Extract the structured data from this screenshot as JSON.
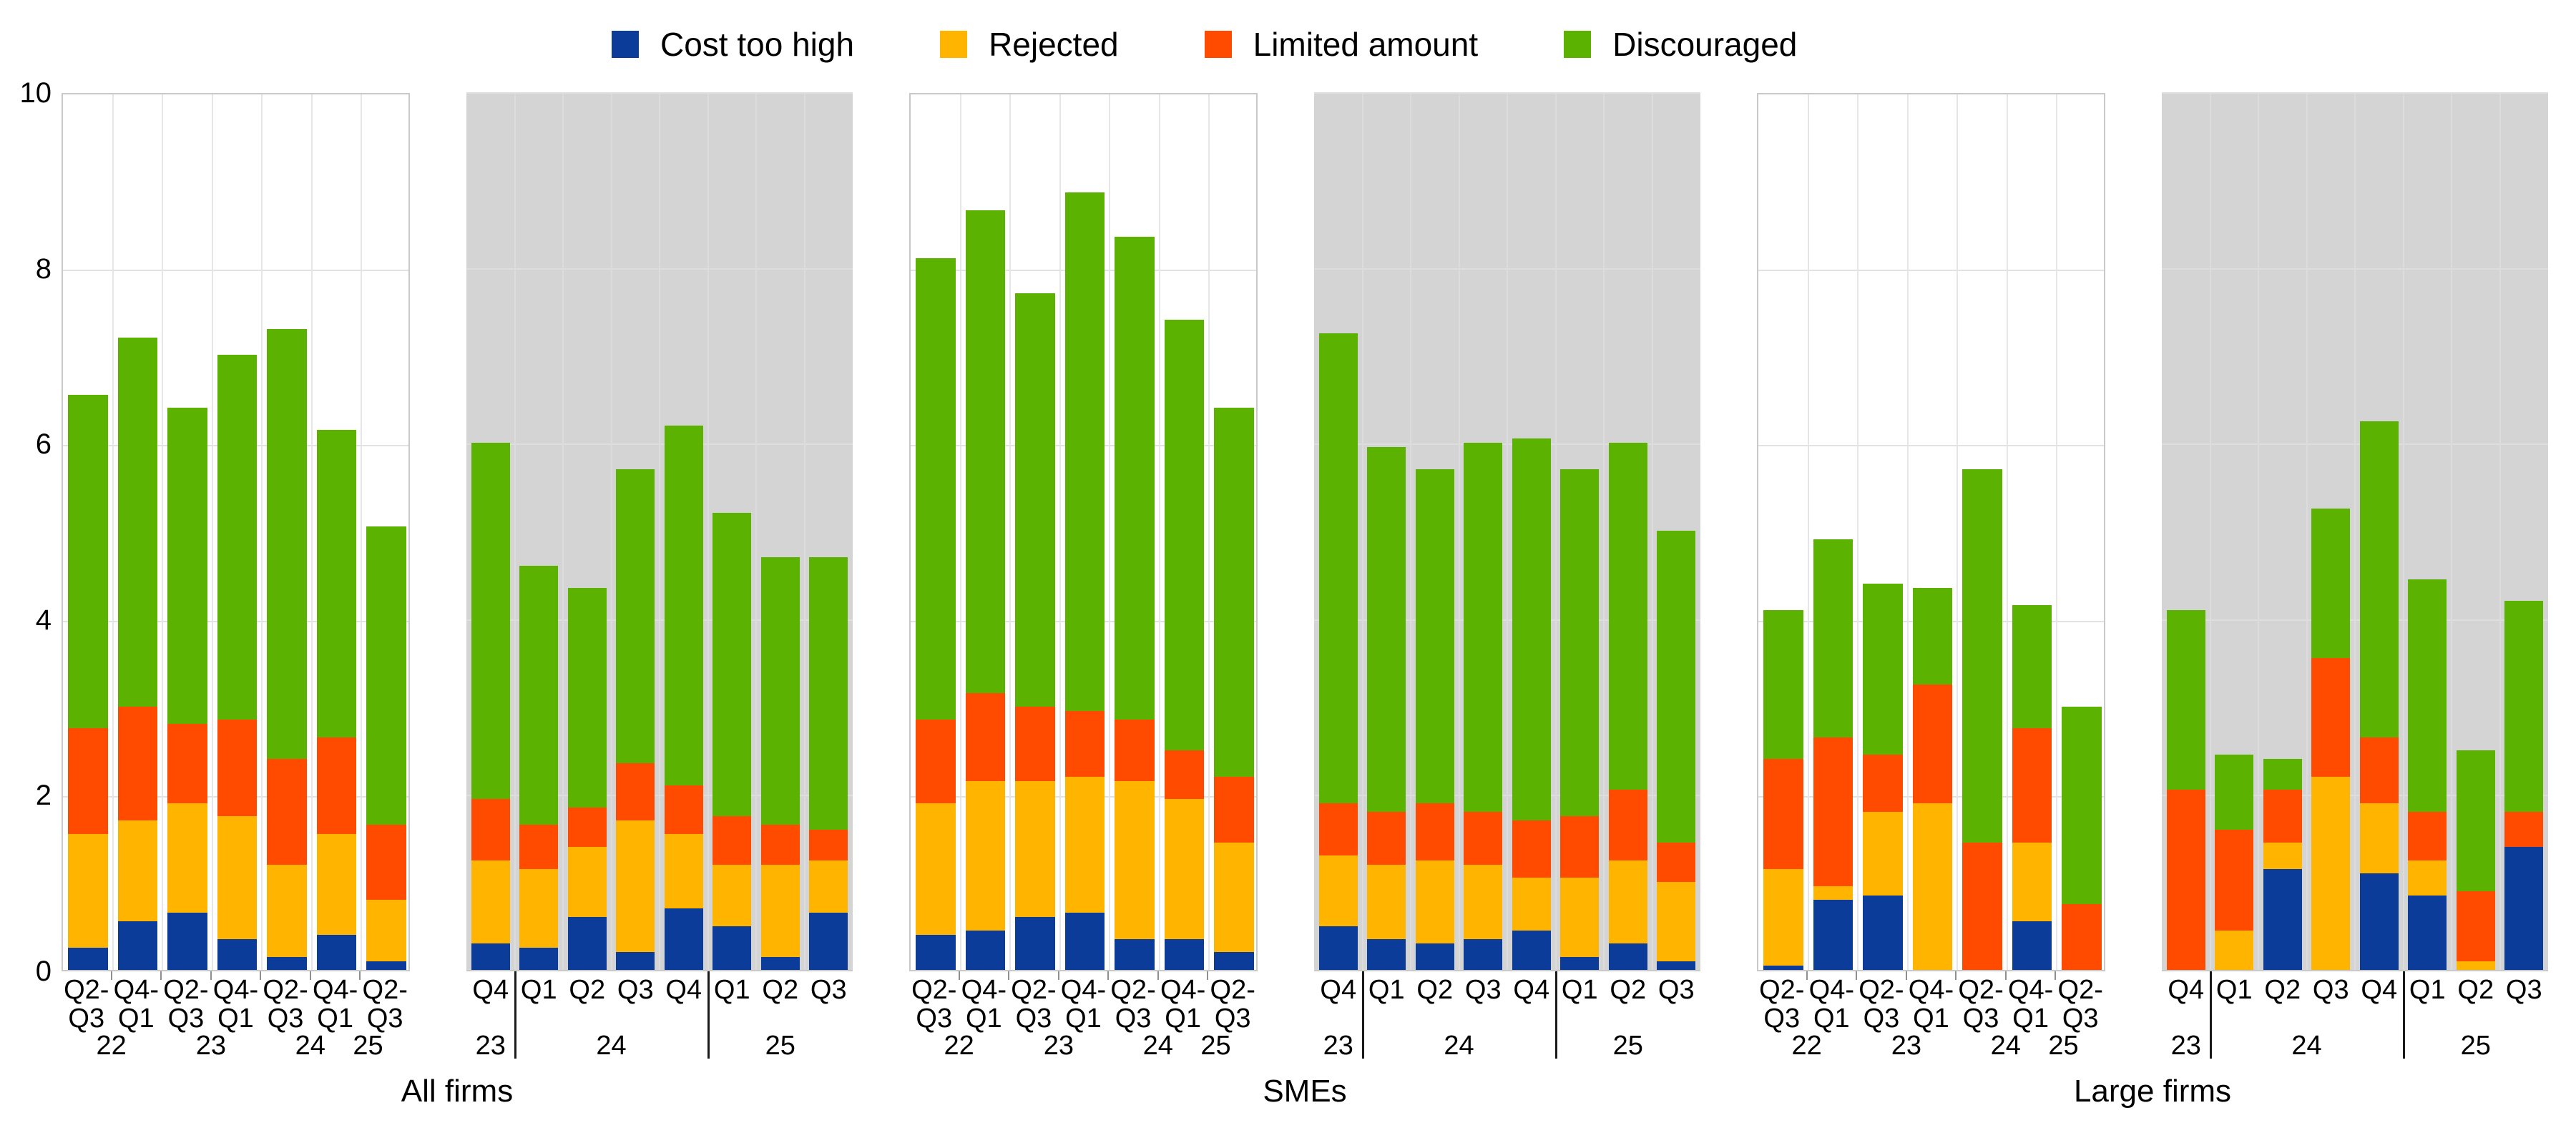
{
  "chart_data": {
    "type": "bar",
    "stacked": true,
    "title": "",
    "xlabel": "",
    "ylabel": "",
    "ylim": [
      0,
      10
    ],
    "yticks": [
      0,
      2,
      4,
      6,
      8,
      10
    ],
    "grid": true,
    "legend_position": "top",
    "series": [
      {
        "name": "Cost too high",
        "color": "#0C3C99"
      },
      {
        "name": "Rejected",
        "color": "#FFB400"
      },
      {
        "name": "Limited amount",
        "color": "#FF4B00"
      },
      {
        "name": "Discouraged",
        "color": "#5CB200"
      }
    ],
    "panels": [
      {
        "title": "All firms",
        "sections": [
          {
            "kind": "semiannual",
            "background": "white",
            "bars": [
              {
                "label": "Q2-Q3",
                "label_lines": [
                  "Q2-",
                  "Q3"
                ],
                "values": [
                  0.25,
                  1.3,
                  1.2,
                  3.8
                ]
              },
              {
                "label": "Q4-Q1",
                "label_lines": [
                  "Q4-",
                  "Q1"
                ],
                "values": [
                  0.55,
                  1.15,
                  1.3,
                  4.2
                ]
              },
              {
                "label": "Q2-Q3",
                "label_lines": [
                  "Q2-",
                  "Q3"
                ],
                "values": [
                  0.65,
                  1.25,
                  0.9,
                  3.6
                ]
              },
              {
                "label": "Q4-Q1",
                "label_lines": [
                  "Q4-",
                  "Q1"
                ],
                "values": [
                  0.35,
                  1.4,
                  1.1,
                  4.15
                ]
              },
              {
                "label": "Q2-Q3",
                "label_lines": [
                  "Q2-",
                  "Q3"
                ],
                "values": [
                  0.15,
                  1.05,
                  1.2,
                  4.9
                ]
              },
              {
                "label": "Q4-Q1",
                "label_lines": [
                  "Q4-",
                  "Q1"
                ],
                "values": [
                  0.4,
                  1.15,
                  1.1,
                  3.5
                ]
              },
              {
                "label": "Q2-Q3",
                "label_lines": [
                  "Q2-",
                  "Q3"
                ],
                "values": [
                  0.1,
                  0.7,
                  0.85,
                  3.4
                ]
              }
            ],
            "years": [
              {
                "label": "22",
                "pos": 0.143
              },
              {
                "label": "23",
                "pos": 0.429
              },
              {
                "label": "24",
                "pos": 0.714
              },
              {
                "label": "25",
                "pos": 0.88
              }
            ],
            "separators": []
          },
          {
            "kind": "quarterly",
            "background": "gray",
            "bars": [
              {
                "label": "Q4",
                "values": [
                  0.3,
                  0.95,
                  0.7,
                  4.05
                ]
              },
              {
                "label": "Q1",
                "values": [
                  0.25,
                  0.9,
                  0.5,
                  2.95
                ]
              },
              {
                "label": "Q2",
                "values": [
                  0.6,
                  0.8,
                  0.45,
                  2.5
                ]
              },
              {
                "label": "Q3",
                "values": [
                  0.2,
                  1.5,
                  0.65,
                  3.35
                ]
              },
              {
                "label": "Q4",
                "values": [
                  0.7,
                  0.85,
                  0.55,
                  4.1
                ]
              },
              {
                "label": "Q1",
                "values": [
                  0.5,
                  0.7,
                  0.55,
                  3.45
                ]
              },
              {
                "label": "Q2",
                "values": [
                  0.15,
                  1.05,
                  0.45,
                  3.05
                ]
              },
              {
                "label": "Q3",
                "values": [
                  0.65,
                  0.6,
                  0.35,
                  3.1
                ]
              }
            ],
            "years": [
              {
                "label": "23",
                "pos": 0.0625
              },
              {
                "label": "24",
                "pos": 0.375
              },
              {
                "label": "25",
                "pos": 0.8125
              }
            ],
            "separators": [
              0.125,
              0.625
            ]
          }
        ]
      },
      {
        "title": "SMEs",
        "sections": [
          {
            "kind": "semiannual",
            "background": "white",
            "bars": [
              {
                "label": "Q2-Q3",
                "label_lines": [
                  "Q2-",
                  "Q3"
                ],
                "values": [
                  0.4,
                  1.5,
                  0.95,
                  5.25
                ]
              },
              {
                "label": "Q4-Q1",
                "label_lines": [
                  "Q4-",
                  "Q1"
                ],
                "values": [
                  0.45,
                  1.7,
                  1.0,
                  5.5
                ]
              },
              {
                "label": "Q2-Q3",
                "label_lines": [
                  "Q2-",
                  "Q3"
                ],
                "values": [
                  0.6,
                  1.55,
                  0.85,
                  4.7
                ]
              },
              {
                "label": "Q4-Q1",
                "label_lines": [
                  "Q4-",
                  "Q1"
                ],
                "values": [
                  0.65,
                  1.55,
                  0.75,
                  5.9
                ]
              },
              {
                "label": "Q2-Q3",
                "label_lines": [
                  "Q2-",
                  "Q3"
                ],
                "values": [
                  0.35,
                  1.8,
                  0.7,
                  5.5
                ]
              },
              {
                "label": "Q4-Q1",
                "label_lines": [
                  "Q4-",
                  "Q1"
                ],
                "values": [
                  0.35,
                  1.6,
                  0.55,
                  4.9
                ]
              },
              {
                "label": "Q2-Q3",
                "label_lines": [
                  "Q2-",
                  "Q3"
                ],
                "values": [
                  0.2,
                  1.25,
                  0.75,
                  4.2
                ]
              }
            ],
            "years": [
              {
                "label": "22",
                "pos": 0.143
              },
              {
                "label": "23",
                "pos": 0.429
              },
              {
                "label": "24",
                "pos": 0.714
              },
              {
                "label": "25",
                "pos": 0.88
              }
            ],
            "separators": []
          },
          {
            "kind": "quarterly",
            "background": "gray",
            "bars": [
              {
                "label": "Q4",
                "values": [
                  0.5,
                  0.8,
                  0.6,
                  5.35
                ]
              },
              {
                "label": "Q1",
                "values": [
                  0.35,
                  0.85,
                  0.6,
                  4.15
                ]
              },
              {
                "label": "Q2",
                "values": [
                  0.3,
                  0.95,
                  0.65,
                  3.8
                ]
              },
              {
                "label": "Q3",
                "values": [
                  0.35,
                  0.85,
                  0.6,
                  4.2
                ]
              },
              {
                "label": "Q4",
                "values": [
                  0.45,
                  0.6,
                  0.65,
                  4.35
                ]
              },
              {
                "label": "Q1",
                "values": [
                  0.15,
                  0.9,
                  0.7,
                  3.95
                ]
              },
              {
                "label": "Q2",
                "values": [
                  0.3,
                  0.95,
                  0.8,
                  3.95
                ]
              },
              {
                "label": "Q3",
                "values": [
                  0.1,
                  0.9,
                  0.45,
                  3.55
                ]
              }
            ],
            "years": [
              {
                "label": "23",
                "pos": 0.0625
              },
              {
                "label": "24",
                "pos": 0.375
              },
              {
                "label": "25",
                "pos": 0.8125
              }
            ],
            "separators": [
              0.125,
              0.625
            ]
          }
        ]
      },
      {
        "title": "Large firms",
        "sections": [
          {
            "kind": "semiannual",
            "background": "white",
            "bars": [
              {
                "label": "Q2-Q3",
                "label_lines": [
                  "Q2-",
                  "Q3"
                ],
                "values": [
                  0.05,
                  1.1,
                  1.25,
                  1.7
                ]
              },
              {
                "label": "Q4-Q1",
                "label_lines": [
                  "Q4-",
                  "Q1"
                ],
                "values": [
                  0.8,
                  0.15,
                  1.7,
                  2.25
                ]
              },
              {
                "label": "Q2-Q3",
                "label_lines": [
                  "Q2-",
                  "Q3"
                ],
                "values": [
                  0.85,
                  0.95,
                  0.65,
                  1.95
                ]
              },
              {
                "label": "Q4-Q1",
                "label_lines": [
                  "Q4-",
                  "Q1"
                ],
                "values": [
                  0.0,
                  1.9,
                  1.35,
                  1.1
                ]
              },
              {
                "label": "Q2-Q3",
                "label_lines": [
                  "Q2-",
                  "Q3"
                ],
                "values": [
                  0.0,
                  0.0,
                  1.45,
                  4.25
                ]
              },
              {
                "label": "Q4-Q1",
                "label_lines": [
                  "Q4-",
                  "Q1"
                ],
                "values": [
                  0.55,
                  0.9,
                  1.3,
                  1.4
                ]
              },
              {
                "label": "Q2-Q3",
                "label_lines": [
                  "Q2-",
                  "Q3"
                ],
                "values": [
                  0.0,
                  0.0,
                  0.75,
                  2.25
                ]
              }
            ],
            "years": [
              {
                "label": "22",
                "pos": 0.143
              },
              {
                "label": "23",
                "pos": 0.429
              },
              {
                "label": "24",
                "pos": 0.714
              },
              {
                "label": "25",
                "pos": 0.88
              }
            ],
            "separators": []
          },
          {
            "kind": "quarterly",
            "background": "gray",
            "bars": [
              {
                "label": "Q4",
                "values": [
                  0.0,
                  0.0,
                  2.05,
                  2.05
                ]
              },
              {
                "label": "Q1",
                "values": [
                  0.0,
                  0.45,
                  1.15,
                  0.85
                ]
              },
              {
                "label": "Q2",
                "values": [
                  1.15,
                  0.3,
                  0.6,
                  0.35
                ]
              },
              {
                "label": "Q3",
                "values": [
                  0.0,
                  2.2,
                  1.35,
                  1.7
                ]
              },
              {
                "label": "Q4",
                "values": [
                  1.1,
                  0.8,
                  0.75,
                  3.6
                ]
              },
              {
                "label": "Q1",
                "values": [
                  0.85,
                  0.4,
                  0.55,
                  2.65
                ]
              },
              {
                "label": "Q2",
                "values": [
                  0.0,
                  0.1,
                  0.8,
                  1.6
                ]
              },
              {
                "label": "Q3",
                "values": [
                  1.4,
                  0.0,
                  0.4,
                  2.4
                ]
              }
            ],
            "years": [
              {
                "label": "23",
                "pos": 0.0625
              },
              {
                "label": "24",
                "pos": 0.375
              },
              {
                "label": "25",
                "pos": 0.8125
              }
            ],
            "separators": [
              0.125,
              0.625
            ]
          }
        ]
      }
    ]
  }
}
